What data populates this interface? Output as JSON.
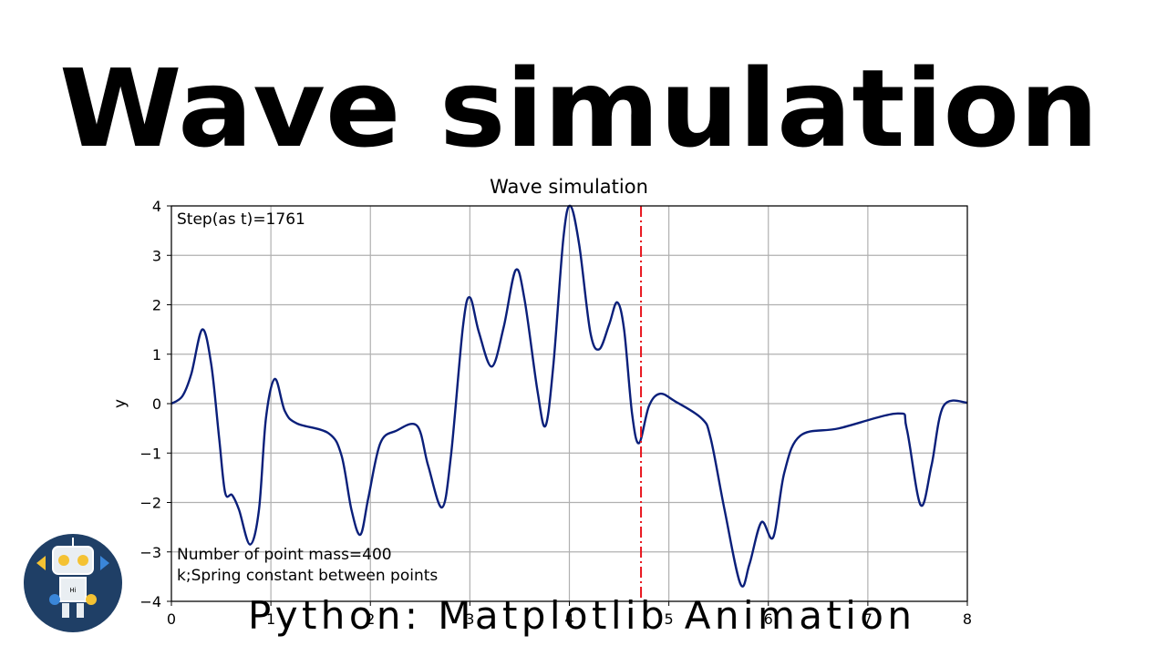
{
  "header": {
    "title": "Wave simulation"
  },
  "chart_data": {
    "type": "line",
    "title": "Wave simulation",
    "y_label": "y",
    "x": [
      0,
      0.11,
      0.2,
      0.31,
      0.4,
      0.48,
      0.54,
      0.61,
      0.68,
      0.79,
      0.88,
      0.95,
      1.04,
      1.14,
      1.26,
      1.58,
      1.71,
      1.81,
      1.9,
      1.98,
      2.1,
      2.26,
      2.47,
      2.58,
      2.72,
      2.81,
      2.93,
      3.0,
      3.09,
      3.22,
      3.34,
      3.46,
      3.55,
      3.68,
      3.76,
      3.84,
      3.94,
      4.01,
      4.1,
      4.21,
      4.3,
      4.4,
      4.48,
      4.55,
      4.63,
      4.7,
      4.8,
      4.91,
      5.06,
      5.33,
      5.42,
      5.56,
      5.72,
      5.81,
      5.93,
      6.05,
      6.16,
      6.32,
      6.71,
      7.3,
      7.39,
      7.53,
      7.64,
      7.76,
      8.0
    ],
    "series": [
      {
        "name": "wave",
        "color": "#0a1f7a",
        "values": [
          0,
          0.15,
          0.6,
          1.5,
          0.8,
          -0.7,
          -1.8,
          -1.85,
          -2.15,
          -2.85,
          -2.15,
          -0.3,
          0.5,
          -0.15,
          -0.4,
          -0.6,
          -1.05,
          -2.15,
          -2.65,
          -1.9,
          -0.8,
          -0.55,
          -0.45,
          -1.25,
          -2.1,
          -1.05,
          1.55,
          2.15,
          1.45,
          0.75,
          1.55,
          2.7,
          2.1,
          0.25,
          -0.45,
          0.8,
          3.35,
          4.0,
          3.2,
          1.45,
          1.1,
          1.6,
          2.05,
          1.5,
          -0.2,
          -0.8,
          -0.05,
          0.2,
          0.05,
          -0.3,
          -0.7,
          -2.15,
          -3.65,
          -3.25,
          -2.4,
          -2.7,
          -1.4,
          -0.65,
          -0.5,
          -0.2,
          -0.5,
          -2.05,
          -1.25,
          -0.05,
          0.02
        ]
      }
    ],
    "xlim": [
      0,
      8
    ],
    "ylim": [
      -4,
      4
    ],
    "xticks": [
      0,
      1,
      2,
      3,
      4,
      5,
      6,
      7,
      8
    ],
    "yticks": [
      {
        "value": -4,
        "label": "−4"
      },
      {
        "value": -3,
        "label": "−3"
      },
      {
        "value": -2,
        "label": "−2"
      },
      {
        "value": -1,
        "label": "−1"
      },
      0,
      1,
      2,
      3,
      4
    ],
    "grid": true,
    "vline": {
      "x": 4.72,
      "color": "#e8141c"
    },
    "annotations": [
      "Step(as t)=1761",
      "Number of point mass=400",
      "k;Spring constant between points"
    ]
  },
  "footer": {
    "caption": "Python: Matplotlib Animation"
  },
  "icon": {
    "text": "Hi"
  }
}
